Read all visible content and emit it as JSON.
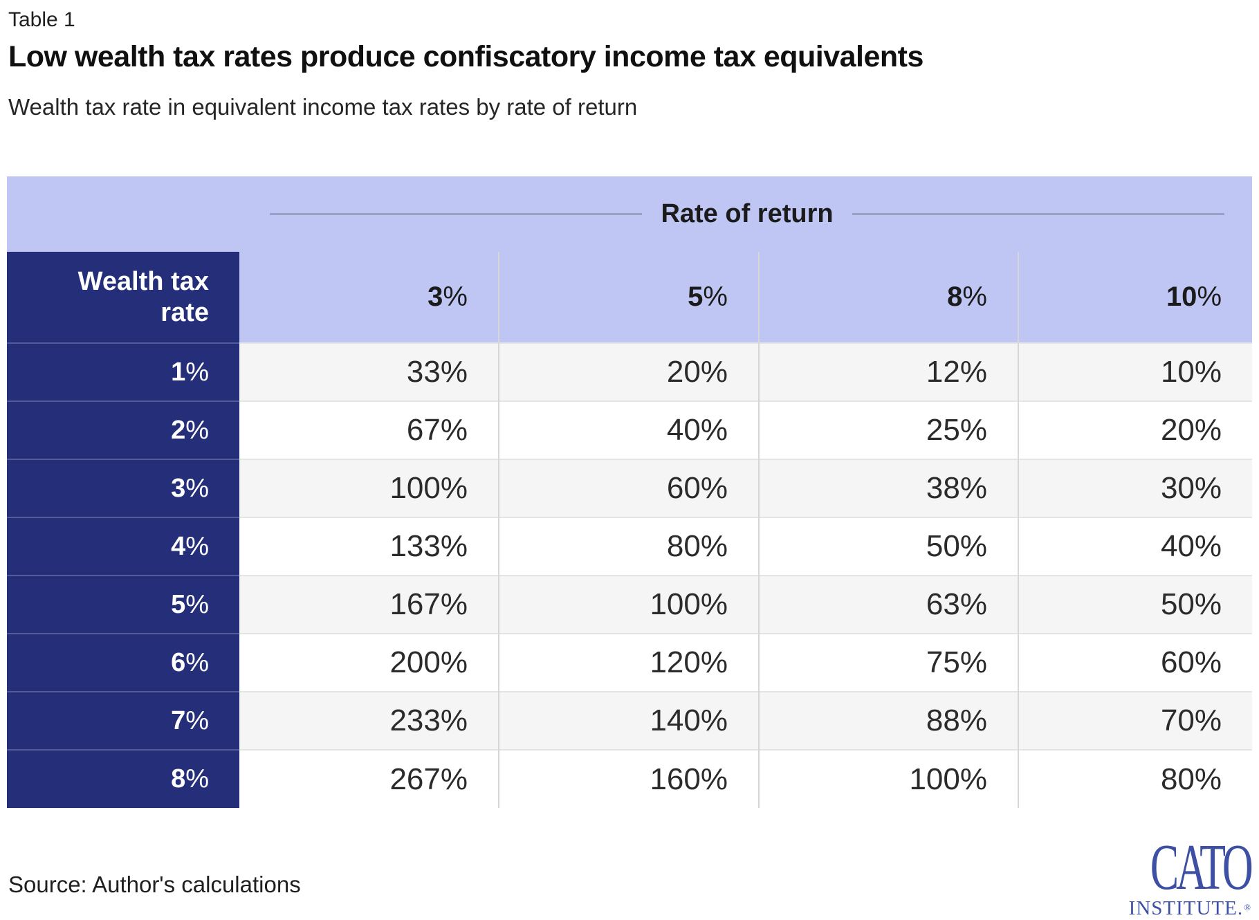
{
  "kicker": "Table 1",
  "title": "Low wealth tax rates produce confiscatory income tax equivalents",
  "subtitle": "Wealth tax rate in equivalent income tax rates by rate of return",
  "source": "Source: Author's calculations",
  "logo": {
    "name": "CATO",
    "sub": "INSTITUTE.",
    "reg": "®"
  },
  "colors": {
    "header_band": "#bfc6f3",
    "navy": "#242e79",
    "row_alt": "#f5f5f6",
    "rule": "#98a0c4",
    "logo_blue": "#3e50a4"
  },
  "chart_data": {
    "type": "table",
    "title": "Low wealth tax rates produce confiscatory income tax equivalents",
    "subtitle": "Wealth tax rate in equivalent income tax rates by rate of return",
    "column_group_label": "Rate of return",
    "row_group_label": "Wealth tax rate",
    "columns": [
      "3%",
      "5%",
      "8%",
      "10%"
    ],
    "rows": [
      {
        "label": "1%",
        "values": [
          "33%",
          "20%",
          "12%",
          "10%"
        ]
      },
      {
        "label": "2%",
        "values": [
          "67%",
          "40%",
          "25%",
          "20%"
        ]
      },
      {
        "label": "3%",
        "values": [
          "100%",
          "60%",
          "38%",
          "30%"
        ]
      },
      {
        "label": "4%",
        "values": [
          "133%",
          "80%",
          "50%",
          "40%"
        ]
      },
      {
        "label": "5%",
        "values": [
          "167%",
          "100%",
          "63%",
          "50%"
        ]
      },
      {
        "label": "6%",
        "values": [
          "200%",
          "120%",
          "75%",
          "60%"
        ]
      },
      {
        "label": "7%",
        "values": [
          "233%",
          "140%",
          "88%",
          "70%"
        ]
      },
      {
        "label": "8%",
        "values": [
          "267%",
          "160%",
          "100%",
          "80%"
        ]
      }
    ]
  }
}
